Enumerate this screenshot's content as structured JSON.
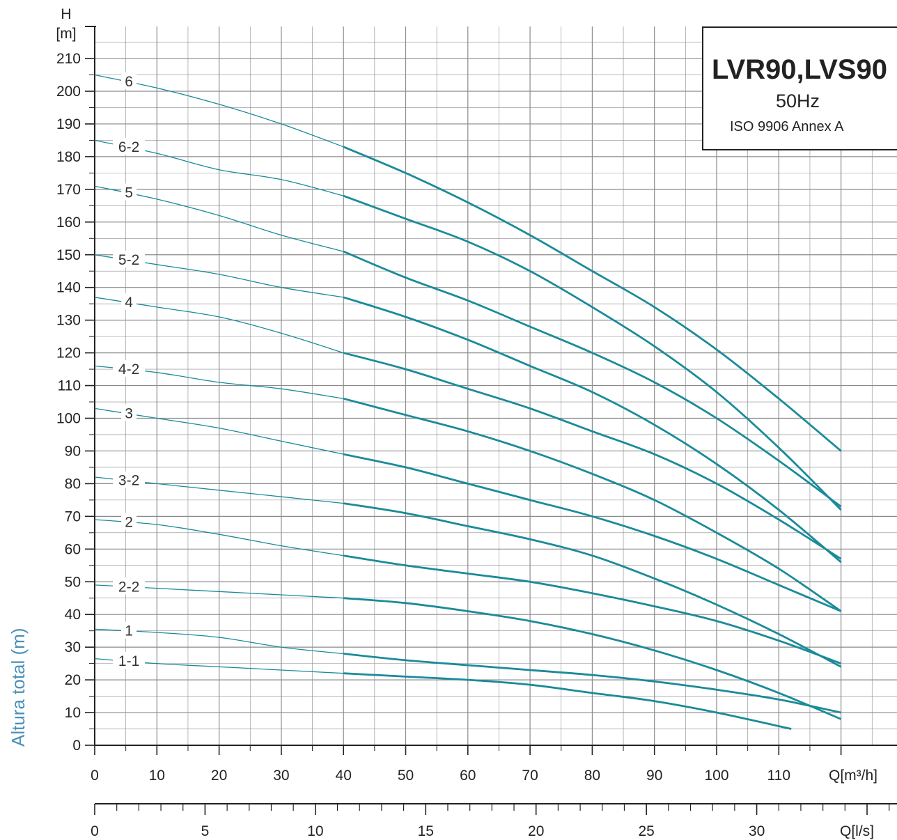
{
  "chart_data": {
    "type": "line",
    "title": "LVR90,LVS90",
    "subtitle": "50Hz",
    "note": "ISO 9906 Annex A",
    "side_label": "Altura total (m)",
    "y_axis": {
      "label_top": "H",
      "label_unit": "[m]",
      "range": [
        0,
        220
      ],
      "ticks": [
        0,
        10,
        20,
        30,
        40,
        50,
        60,
        70,
        80,
        90,
        100,
        110,
        120,
        130,
        140,
        150,
        160,
        170,
        180,
        190,
        200,
        210
      ]
    },
    "x_axis": {
      "label": "Q[m³/h]",
      "range": [
        0,
        120
      ],
      "ticks": [
        0,
        10,
        20,
        30,
        40,
        50,
        60,
        70,
        80,
        90,
        100,
        110
      ]
    },
    "x2_axis": {
      "label": "Q[l/s]",
      "range": [
        0,
        35
      ],
      "ticks": [
        0,
        5,
        10,
        15,
        20,
        25,
        30
      ]
    },
    "grid": true,
    "colors": {
      "curve": "#1a8b99",
      "grid": "#8a8a8a",
      "axis": "#222222"
    },
    "series": [
      {
        "name": "6",
        "x": [
          0,
          10,
          20,
          30,
          40,
          50,
          60,
          70,
          80,
          90,
          100,
          110,
          120
        ],
        "y": [
          205,
          201,
          196,
          190,
          183,
          175,
          166,
          156,
          145,
          134,
          121,
          106,
          90
        ]
      },
      {
        "name": "6-2",
        "x": [
          0,
          10,
          20,
          30,
          40,
          50,
          60,
          70,
          80,
          90,
          100,
          110,
          120
        ],
        "y": [
          185,
          181,
          176,
          173,
          168,
          161,
          154,
          145,
          134,
          122,
          108,
          91,
          72
        ]
      },
      {
        "name": "5",
        "x": [
          0,
          10,
          20,
          30,
          40,
          50,
          60,
          70,
          80,
          90,
          100,
          110,
          120
        ],
        "y": [
          171,
          167,
          162,
          156,
          151,
          143,
          136,
          128,
          120,
          111,
          100,
          87,
          73
        ]
      },
      {
        "name": "5-2",
        "x": [
          0,
          10,
          20,
          30,
          40,
          50,
          60,
          70,
          80,
          90,
          100,
          110,
          120
        ],
        "y": [
          150,
          147,
          144,
          140,
          137,
          131,
          124,
          116,
          108,
          98,
          86,
          72,
          56
        ]
      },
      {
        "name": "4",
        "x": [
          0,
          10,
          20,
          30,
          40,
          50,
          60,
          70,
          80,
          90,
          100,
          110,
          120
        ],
        "y": [
          137,
          134,
          131,
          126,
          120,
          115,
          109,
          103,
          96,
          89,
          80,
          69,
          57
        ]
      },
      {
        "name": "4-2",
        "x": [
          0,
          10,
          20,
          30,
          40,
          50,
          60,
          70,
          80,
          90,
          100,
          110,
          120
        ],
        "y": [
          116,
          114,
          111,
          109,
          106,
          101,
          96,
          90,
          83,
          75,
          65,
          54,
          41
        ]
      },
      {
        "name": "3",
        "x": [
          0,
          10,
          20,
          30,
          40,
          50,
          60,
          70,
          80,
          90,
          100,
          110,
          120
        ],
        "y": [
          103,
          100,
          97,
          93,
          89,
          85,
          80,
          75,
          70,
          64,
          57,
          49,
          41
        ]
      },
      {
        "name": "3-2",
        "x": [
          0,
          10,
          20,
          30,
          40,
          50,
          60,
          70,
          80,
          90,
          100,
          110,
          120
        ],
        "y": [
          82,
          80,
          78,
          76,
          74,
          71,
          67,
          63,
          58,
          51,
          43,
          34,
          24
        ]
      },
      {
        "name": "2",
        "x": [
          0,
          10,
          20,
          30,
          40,
          50,
          60,
          70,
          80,
          90,
          100,
          110,
          120
        ],
        "y": [
          69,
          67.5,
          64.5,
          61,
          58,
          55,
          52.5,
          50,
          46.5,
          42.5,
          38,
          32,
          25
        ]
      },
      {
        "name": "2-2",
        "x": [
          0,
          10,
          20,
          30,
          40,
          50,
          60,
          70,
          80,
          90,
          100,
          110,
          120
        ],
        "y": [
          49,
          48,
          47,
          46,
          45,
          43.5,
          41,
          38,
          34,
          29,
          23,
          16,
          8
        ]
      },
      {
        "name": "1",
        "x": [
          0,
          10,
          20,
          30,
          40,
          50,
          60,
          70,
          80,
          90,
          100,
          110,
          120
        ],
        "y": [
          35.5,
          34.5,
          33,
          30,
          28,
          26,
          24.5,
          23,
          21.5,
          19.5,
          17,
          14,
          10
        ]
      },
      {
        "name": "1-1",
        "x": [
          0,
          10,
          20,
          30,
          40,
          50,
          60,
          70,
          80,
          90,
          100,
          112
        ],
        "y": [
          26.5,
          25,
          24,
          23,
          22,
          21,
          20,
          18.5,
          16,
          13.5,
          10,
          5
        ]
      }
    ]
  }
}
